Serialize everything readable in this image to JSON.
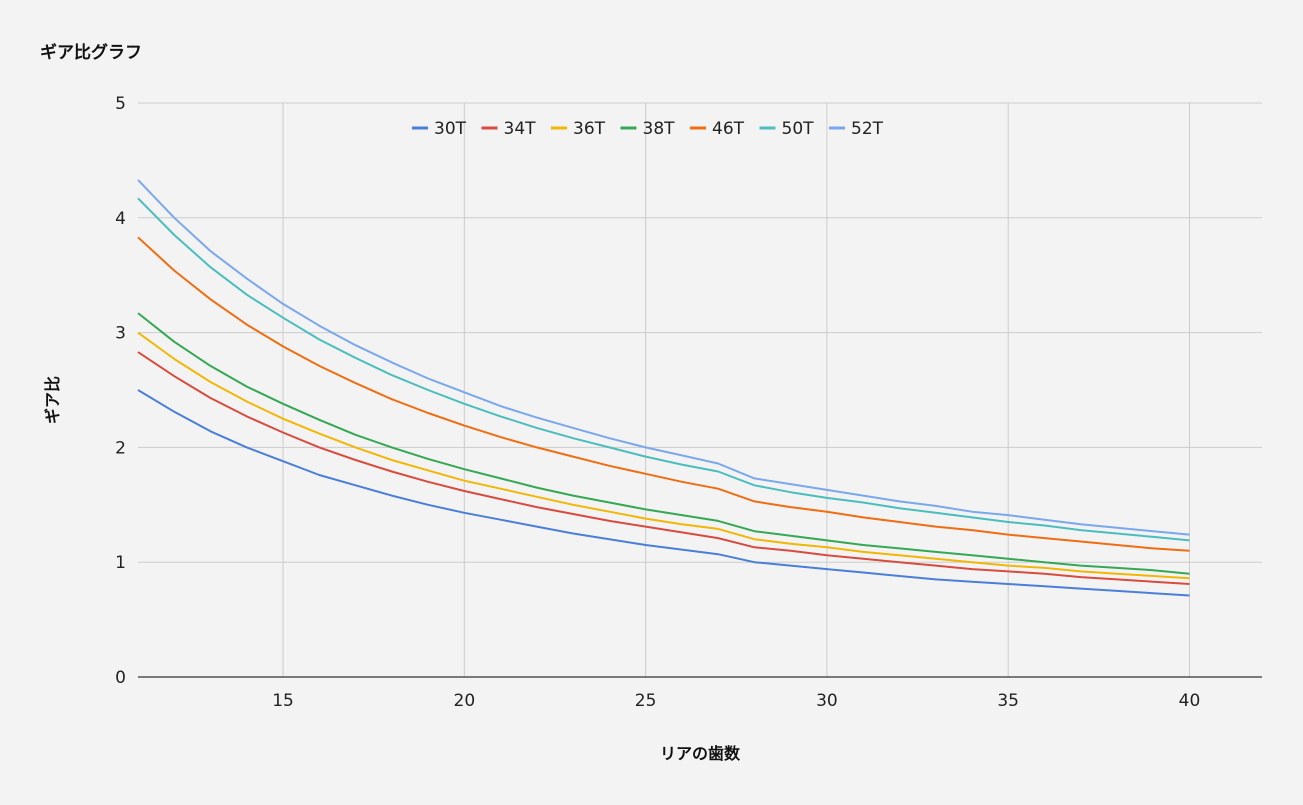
{
  "chart_data": {
    "type": "line",
    "title": "ギア比グラフ",
    "xlabel": "リアの歯数",
    "ylabel": "ギア比",
    "xlim": [
      11,
      42
    ],
    "ylim": [
      0,
      5
    ],
    "x_ticks": [
      15,
      20,
      25,
      30,
      35,
      40
    ],
    "y_ticks": [
      0,
      1,
      2,
      3,
      4,
      5
    ],
    "grid": true,
    "legend_position": "top",
    "x": [
      11,
      12,
      13,
      14,
      15,
      16,
      17,
      18,
      19,
      20,
      21,
      22,
      23,
      24,
      25,
      26,
      27,
      28,
      29,
      30,
      31,
      32,
      33,
      34,
      35,
      36,
      37,
      38,
      39,
      40
    ],
    "series": [
      {
        "name": "30T",
        "color": "#4a7fd9",
        "values": [
          2.5,
          2.31,
          2.14,
          2.0,
          1.88,
          1.76,
          1.67,
          1.58,
          1.5,
          1.43,
          1.37,
          1.31,
          1.25,
          1.2,
          1.15,
          1.11,
          1.07,
          1.0,
          0.97,
          0.94,
          0.91,
          0.88,
          0.85,
          0.83,
          0.81,
          0.79,
          0.77,
          0.75,
          0.73,
          0.71
        ]
      },
      {
        "name": "34T",
        "color": "#d94b3e",
        "values": [
          2.83,
          2.62,
          2.43,
          2.27,
          2.13,
          2.0,
          1.89,
          1.79,
          1.7,
          1.62,
          1.55,
          1.48,
          1.42,
          1.36,
          1.31,
          1.26,
          1.21,
          1.13,
          1.1,
          1.06,
          1.03,
          1.0,
          0.97,
          0.94,
          0.92,
          0.9,
          0.87,
          0.85,
          0.83,
          0.81
        ]
      },
      {
        "name": "36T",
        "color": "#f2b705",
        "values": [
          3.0,
          2.77,
          2.57,
          2.4,
          2.25,
          2.12,
          2.0,
          1.89,
          1.8,
          1.71,
          1.64,
          1.57,
          1.5,
          1.44,
          1.38,
          1.33,
          1.29,
          1.2,
          1.16,
          1.13,
          1.09,
          1.06,
          1.03,
          1.0,
          0.97,
          0.95,
          0.92,
          0.9,
          0.88,
          0.86
        ]
      },
      {
        "name": "38T",
        "color": "#34a853",
        "values": [
          3.17,
          2.92,
          2.71,
          2.53,
          2.38,
          2.24,
          2.11,
          2.0,
          1.9,
          1.81,
          1.73,
          1.65,
          1.58,
          1.52,
          1.46,
          1.41,
          1.36,
          1.27,
          1.23,
          1.19,
          1.15,
          1.12,
          1.09,
          1.06,
          1.03,
          1.0,
          0.97,
          0.95,
          0.93,
          0.9
        ]
      },
      {
        "name": "46T",
        "color": "#f06d12",
        "values": [
          3.83,
          3.54,
          3.29,
          3.07,
          2.88,
          2.71,
          2.56,
          2.42,
          2.3,
          2.19,
          2.09,
          2.0,
          1.92,
          1.84,
          1.77,
          1.7,
          1.64,
          1.53,
          1.48,
          1.44,
          1.39,
          1.35,
          1.31,
          1.28,
          1.24,
          1.21,
          1.18,
          1.15,
          1.12,
          1.1
        ]
      },
      {
        "name": "50T",
        "color": "#4bbdbd",
        "values": [
          4.17,
          3.85,
          3.57,
          3.33,
          3.13,
          2.94,
          2.78,
          2.63,
          2.5,
          2.38,
          2.27,
          2.17,
          2.08,
          2.0,
          1.92,
          1.85,
          1.79,
          1.67,
          1.61,
          1.56,
          1.52,
          1.47,
          1.43,
          1.39,
          1.35,
          1.32,
          1.28,
          1.25,
          1.22,
          1.19
        ]
      },
      {
        "name": "52T",
        "color": "#7aa8ec",
        "values": [
          4.33,
          4.0,
          3.71,
          3.47,
          3.25,
          3.06,
          2.89,
          2.74,
          2.6,
          2.48,
          2.36,
          2.26,
          2.17,
          2.08,
          2.0,
          1.93,
          1.86,
          1.73,
          1.68,
          1.63,
          1.58,
          1.53,
          1.49,
          1.44,
          1.41,
          1.37,
          1.33,
          1.3,
          1.27,
          1.24
        ]
      }
    ]
  }
}
